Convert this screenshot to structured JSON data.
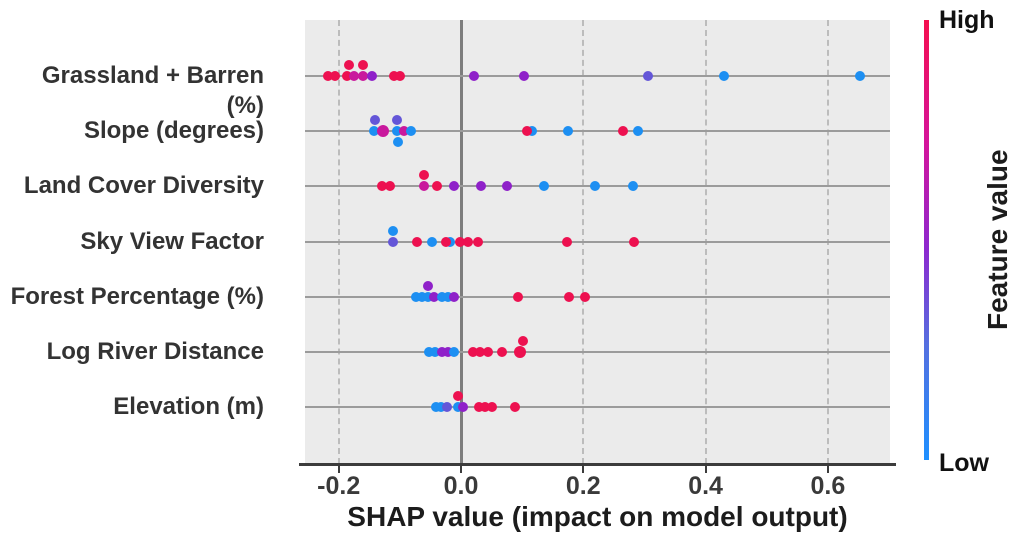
{
  "chart_data": {
    "type": "scatter",
    "subtype": "shap-summary-dot-plot",
    "title": "",
    "xlabel": "SHAP value (impact on model output)",
    "ylabel": "",
    "xlim": [
      -0.26,
      0.7
    ],
    "grid": {
      "vertical_dashed": true,
      "zero_reference_line": true,
      "horizontal_feature_lines": true
    },
    "xticks": [
      {
        "value": -0.2,
        "label": "-0.2"
      },
      {
        "value": 0.0,
        "label": "0.0"
      },
      {
        "value": 0.2,
        "label": "0.2"
      },
      {
        "value": 0.4,
        "label": "0.4"
      },
      {
        "value": 0.6,
        "label": "0.6"
      }
    ],
    "colorbar": {
      "title": "Feature value",
      "high_label": "High",
      "low_label": "Low",
      "top_color": "#f50f4f",
      "bottom_color": "#1e90ff",
      "position": "right"
    },
    "colors": {
      "red": "#ed1150",
      "magenta": "#c9189d",
      "purple": "#8f21c9",
      "violet": "#6456d8",
      "blue": "#1d8ff2"
    },
    "features": [
      {
        "label": "Grassland + Barren (%)",
        "points": [
          {
            "x": -0.218,
            "c": "red"
          },
          {
            "x": -0.206,
            "c": "red"
          },
          {
            "x": -0.183,
            "c": "red",
            "dy": -11
          },
          {
            "x": -0.16,
            "c": "red",
            "dy": -11
          },
          {
            "x": -0.187,
            "c": "red"
          },
          {
            "x": -0.175,
            "c": "magenta"
          },
          {
            "x": -0.16,
            "c": "magenta"
          },
          {
            "x": -0.146,
            "c": "purple"
          },
          {
            "x": -0.11,
            "c": "red"
          },
          {
            "x": -0.1,
            "c": "red"
          },
          {
            "x": 0.021,
            "c": "purple"
          },
          {
            "x": 0.103,
            "c": "purple"
          },
          {
            "x": 0.306,
            "c": "violet"
          },
          {
            "x": 0.43,
            "c": "blue"
          },
          {
            "x": 0.653,
            "c": "blue"
          }
        ]
      },
      {
        "label": "Slope (degrees)",
        "points": [
          {
            "x": -0.141,
            "c": "violet",
            "dy": -11
          },
          {
            "x": -0.105,
            "c": "violet",
            "dy": -11
          },
          {
            "x": -0.142,
            "c": "blue"
          },
          {
            "x": -0.128,
            "c": "magenta",
            "r": 6
          },
          {
            "x": -0.105,
            "c": "blue"
          },
          {
            "x": -0.093,
            "c": "magenta"
          },
          {
            "x": -0.082,
            "c": "blue"
          },
          {
            "x": -0.103,
            "c": "blue",
            "dy": 11
          },
          {
            "x": 0.116,
            "c": "blue"
          },
          {
            "x": 0.108,
            "c": "red"
          },
          {
            "x": 0.175,
            "c": "blue"
          },
          {
            "x": 0.265,
            "c": "red"
          },
          {
            "x": 0.29,
            "c": "blue"
          }
        ]
      },
      {
        "label": "Land Cover Diversity",
        "points": [
          {
            "x": -0.129,
            "c": "red"
          },
          {
            "x": -0.116,
            "c": "red"
          },
          {
            "x": -0.061,
            "c": "red",
            "dy": -11
          },
          {
            "x": -0.061,
            "c": "magenta"
          },
          {
            "x": -0.039,
            "c": "red"
          },
          {
            "x": -0.011,
            "c": "purple"
          },
          {
            "x": 0.033,
            "c": "purple"
          },
          {
            "x": 0.075,
            "c": "purple"
          },
          {
            "x": 0.136,
            "c": "blue"
          },
          {
            "x": 0.219,
            "c": "blue"
          },
          {
            "x": 0.282,
            "c": "blue"
          }
        ]
      },
      {
        "label": "Sky View Factor",
        "points": [
          {
            "x": -0.111,
            "c": "blue",
            "dy": -11
          },
          {
            "x": -0.111,
            "c": "violet"
          },
          {
            "x": -0.072,
            "c": "red"
          },
          {
            "x": -0.047,
            "c": "blue"
          },
          {
            "x": -0.018,
            "c": "blue"
          },
          {
            "x": -0.025,
            "c": "red"
          },
          {
            "x": -0.002,
            "c": "red"
          },
          {
            "x": 0.011,
            "c": "red"
          },
          {
            "x": 0.028,
            "c": "red"
          },
          {
            "x": 0.173,
            "c": "red"
          },
          {
            "x": 0.283,
            "c": "red"
          }
        ]
      },
      {
        "label": "Forest Percentage (%)",
        "points": [
          {
            "x": -0.054,
            "c": "purple",
            "dy": -11
          },
          {
            "x": -0.074,
            "c": "blue"
          },
          {
            "x": -0.064,
            "c": "blue"
          },
          {
            "x": -0.054,
            "c": "blue"
          },
          {
            "x": -0.044,
            "c": "purple"
          },
          {
            "x": -0.031,
            "c": "blue"
          },
          {
            "x": -0.021,
            "c": "blue"
          },
          {
            "x": -0.011,
            "c": "purple"
          },
          {
            "x": 0.093,
            "c": "red"
          },
          {
            "x": 0.177,
            "c": "red"
          },
          {
            "x": 0.203,
            "c": "red"
          }
        ]
      },
      {
        "label": "Log River Distance",
        "points": [
          {
            "x": -0.052,
            "c": "blue"
          },
          {
            "x": -0.043,
            "c": "blue"
          },
          {
            "x": -0.031,
            "c": "purple"
          },
          {
            "x": -0.021,
            "c": "purple"
          },
          {
            "x": -0.011,
            "c": "blue"
          },
          {
            "x": 0.02,
            "c": "red"
          },
          {
            "x": 0.031,
            "c": "red"
          },
          {
            "x": 0.044,
            "c": "red"
          },
          {
            "x": 0.067,
            "c": "red"
          },
          {
            "x": 0.101,
            "c": "red",
            "dy": -11
          },
          {
            "x": 0.097,
            "c": "red",
            "r": 6
          }
        ]
      },
      {
        "label": "Elevation (m)",
        "points": [
          {
            "x": -0.005,
            "c": "red",
            "dy": -11
          },
          {
            "x": -0.041,
            "c": "blue"
          },
          {
            "x": -0.033,
            "c": "blue"
          },
          {
            "x": -0.023,
            "c": "violet"
          },
          {
            "x": -0.005,
            "c": "blue"
          },
          {
            "x": 0.003,
            "c": "purple"
          },
          {
            "x": 0.029,
            "c": "red"
          },
          {
            "x": 0.039,
            "c": "red"
          },
          {
            "x": 0.051,
            "c": "red"
          },
          {
            "x": 0.088,
            "c": "red"
          }
        ]
      }
    ]
  }
}
